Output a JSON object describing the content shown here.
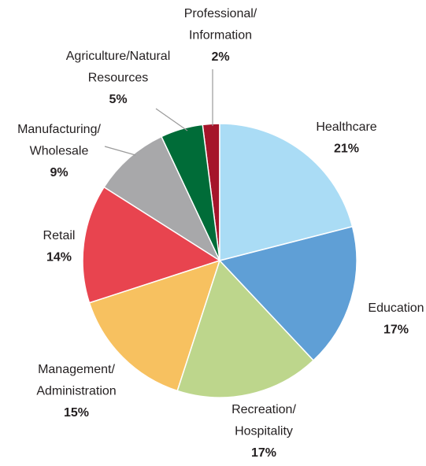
{
  "chart_data": {
    "type": "pie",
    "categories": [
      [
        "Healthcare"
      ],
      [
        "Education"
      ],
      [
        "Recreation/",
        "Hospitality"
      ],
      [
        "Management/",
        "Administration"
      ],
      [
        "Retail"
      ],
      [
        "Manufacturing/",
        "Wholesale"
      ],
      [
        "Agriculture/Natural",
        "Resources"
      ],
      [
        "Professional/",
        "Information"
      ]
    ],
    "values": [
      21,
      17,
      17,
      15,
      14,
      9,
      5,
      2
    ],
    "value_labels": [
      "21%",
      "17%",
      "17%",
      "15%",
      "14%",
      "9%",
      "5%",
      "2%"
    ],
    "colors": [
      "#aadcf5",
      "#5f9fd6",
      "#bdd68c",
      "#f7c160",
      "#e8444f",
      "#a8a8aa",
      "#006c38",
      "#a5152a"
    ]
  }
}
